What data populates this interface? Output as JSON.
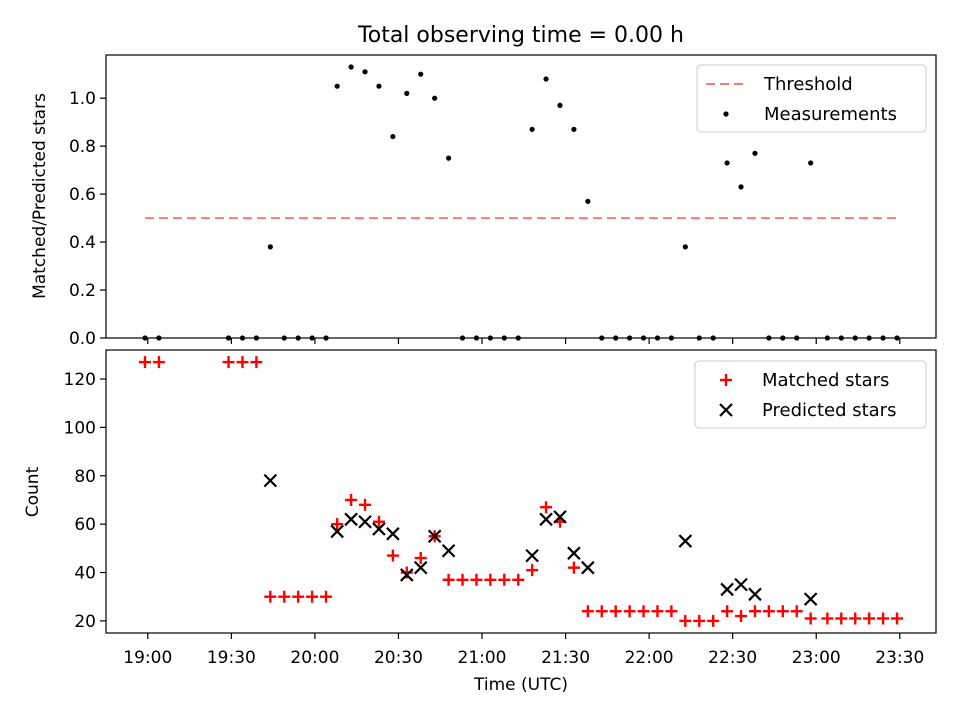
{
  "chart_data": [
    {
      "type": "scatter",
      "title": "Total observing time = 0.00 h",
      "ylabel": "Matched/Predicted stars",
      "xlabel": "",
      "ylim": [
        0,
        1.18
      ],
      "yticks": [
        "0.0",
        "0.2",
        "0.4",
        "0.6",
        "0.8",
        "1.0"
      ],
      "yticks_values": [
        0,
        0.2,
        0.4,
        0.6,
        0.8,
        1.0
      ],
      "legend_position": "top-right",
      "threshold": {
        "name": "Threshold",
        "value": 0.5,
        "x_start": "18:59",
        "x_end": "23:29",
        "color": "#f08080"
      },
      "series": [
        {
          "name": "Measurements",
          "color": "#000000",
          "points": [
            [
              "18:59",
              0
            ],
            [
              "19:04",
              0
            ],
            [
              "19:29",
              0
            ],
            [
              "19:34",
              0
            ],
            [
              "19:39",
              0
            ],
            [
              "19:44",
              0.38
            ],
            [
              "19:49",
              0
            ],
            [
              "19:54",
              0
            ],
            [
              "19:59",
              0
            ],
            [
              "20:04",
              0
            ],
            [
              "20:08",
              1.05
            ],
            [
              "20:13",
              1.13
            ],
            [
              "20:18",
              1.11
            ],
            [
              "20:23",
              1.05
            ],
            [
              "20:28",
              0.84
            ],
            [
              "20:33",
              1.02
            ],
            [
              "20:38",
              1.1
            ],
            [
              "20:43",
              1.0
            ],
            [
              "20:48",
              0.75
            ],
            [
              "20:53",
              0
            ],
            [
              "20:58",
              0
            ],
            [
              "21:03",
              0
            ],
            [
              "21:08",
              0
            ],
            [
              "21:13",
              0
            ],
            [
              "21:18",
              0.87
            ],
            [
              "21:23",
              1.08
            ],
            [
              "21:28",
              0.97
            ],
            [
              "21:33",
              0.87
            ],
            [
              "21:38",
              0.57
            ],
            [
              "21:43",
              0
            ],
            [
              "21:48",
              0
            ],
            [
              "21:53",
              0
            ],
            [
              "21:58",
              0
            ],
            [
              "22:03",
              0
            ],
            [
              "22:08",
              0
            ],
            [
              "22:13",
              0.38
            ],
            [
              "22:18",
              0
            ],
            [
              "22:23",
              0
            ],
            [
              "22:28",
              0.73
            ],
            [
              "22:33",
              0.63
            ],
            [
              "22:38",
              0.77
            ],
            [
              "22:43",
              0
            ],
            [
              "22:48",
              0
            ],
            [
              "22:53",
              0
            ],
            [
              "22:58",
              0.73
            ],
            [
              "23:04",
              0
            ],
            [
              "23:09",
              0
            ],
            [
              "23:14",
              0
            ],
            [
              "23:19",
              0
            ],
            [
              "23:24",
              0
            ],
            [
              "23:29",
              0
            ]
          ]
        }
      ]
    },
    {
      "type": "scatter",
      "title": "",
      "ylabel": "Count",
      "xlabel": "Time (UTC)",
      "ylim": [
        15,
        132
      ],
      "yticks": [
        "20",
        "40",
        "60",
        "80",
        "100",
        "120"
      ],
      "yticks_values": [
        20,
        40,
        60,
        80,
        100,
        120
      ],
      "xlim": [
        "18:45",
        "23:43"
      ],
      "xticks": [
        "19:00",
        "19:30",
        "20:00",
        "20:30",
        "21:00",
        "21:30",
        "22:00",
        "22:30",
        "23:00",
        "23:30"
      ],
      "legend_position": "top-right",
      "series": [
        {
          "name": "Matched stars",
          "marker": "plus",
          "color": "#ff0000",
          "points": [
            [
              "18:59",
              127
            ],
            [
              "19:04",
              127
            ],
            [
              "19:29",
              127
            ],
            [
              "19:34",
              127
            ],
            [
              "19:39",
              127
            ],
            [
              "19:44",
              30
            ],
            [
              "19:49",
              30
            ],
            [
              "19:54",
              30
            ],
            [
              "19:59",
              30
            ],
            [
              "20:04",
              30
            ],
            [
              "20:08",
              60
            ],
            [
              "20:13",
              70
            ],
            [
              "20:18",
              68
            ],
            [
              "20:23",
              61
            ],
            [
              "20:28",
              47
            ],
            [
              "20:33",
              40
            ],
            [
              "20:38",
              46
            ],
            [
              "20:43",
              55
            ],
            [
              "20:48",
              37
            ],
            [
              "20:53",
              37
            ],
            [
              "20:58",
              37
            ],
            [
              "21:03",
              37
            ],
            [
              "21:08",
              37
            ],
            [
              "21:13",
              37
            ],
            [
              "21:18",
              41
            ],
            [
              "21:23",
              67
            ],
            [
              "21:28",
              61
            ],
            [
              "21:33",
              42
            ],
            [
              "21:38",
              24
            ],
            [
              "21:43",
              24
            ],
            [
              "21:48",
              24
            ],
            [
              "21:53",
              24
            ],
            [
              "21:58",
              24
            ],
            [
              "22:03",
              24
            ],
            [
              "22:08",
              24
            ],
            [
              "22:13",
              20
            ],
            [
              "22:18",
              20
            ],
            [
              "22:23",
              20
            ],
            [
              "22:28",
              24
            ],
            [
              "22:33",
              22
            ],
            [
              "22:38",
              24
            ],
            [
              "22:43",
              24
            ],
            [
              "22:48",
              24
            ],
            [
              "22:53",
              24
            ],
            [
              "22:58",
              21
            ],
            [
              "23:04",
              21
            ],
            [
              "23:09",
              21
            ],
            [
              "23:14",
              21
            ],
            [
              "23:19",
              21
            ],
            [
              "23:24",
              21
            ],
            [
              "23:29",
              21
            ]
          ]
        },
        {
          "name": "Predicted stars",
          "marker": "x",
          "color": "#000000",
          "points": [
            [
              "19:44",
              78
            ],
            [
              "20:08",
              57
            ],
            [
              "20:13",
              62
            ],
            [
              "20:18",
              61
            ],
            [
              "20:23",
              58
            ],
            [
              "20:28",
              56
            ],
            [
              "20:33",
              39
            ],
            [
              "20:38",
              42
            ],
            [
              "20:43",
              55
            ],
            [
              "20:48",
              49
            ],
            [
              "21:18",
              47
            ],
            [
              "21:23",
              62
            ],
            [
              "21:28",
              63
            ],
            [
              "21:33",
              48
            ],
            [
              "21:38",
              42
            ],
            [
              "22:13",
              53
            ],
            [
              "22:28",
              33
            ],
            [
              "22:33",
              35
            ],
            [
              "22:38",
              31
            ],
            [
              "22:58",
              29
            ]
          ]
        }
      ]
    }
  ]
}
